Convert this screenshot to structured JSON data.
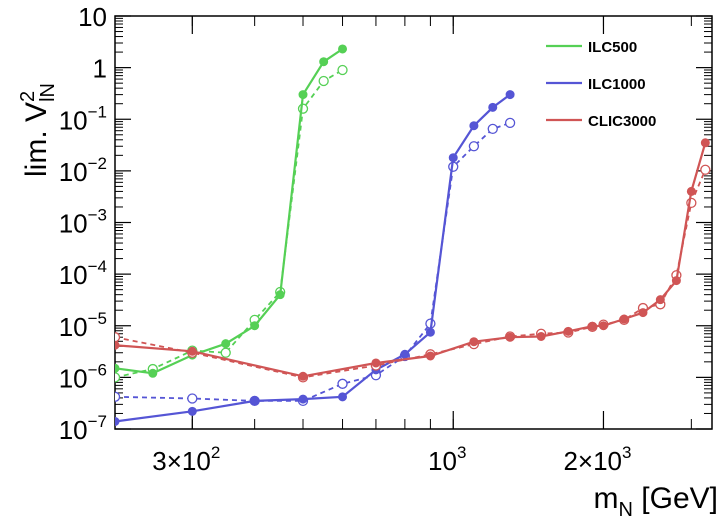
{
  "chart_data": {
    "type": "line",
    "xlabel_main": "m",
    "xlabel_sub": "N",
    "xlabel_unit": " [GeV]",
    "ylabel_main": "lim. V",
    "ylabel_sup": "2",
    "ylabel_sub": "lN",
    "x_scale": "log",
    "y_scale": "log",
    "xlim": [
      210,
      3300
    ],
    "ylim": [
      1e-07,
      10
    ],
    "x_ticks": [
      {
        "value": 300,
        "base": "3×10",
        "exp": "2"
      },
      {
        "value": 1000,
        "base": "10",
        "exp": "3"
      },
      {
        "value": 2000,
        "base": "2×10",
        "exp": "3"
      }
    ],
    "y_ticks": [
      {
        "value": 1e-07,
        "base": "10",
        "exp": "−7"
      },
      {
        "value": 1e-06,
        "base": "10",
        "exp": "−6"
      },
      {
        "value": 1e-05,
        "base": "10",
        "exp": "−5"
      },
      {
        "value": 0.0001,
        "base": "10",
        "exp": "−4"
      },
      {
        "value": 0.001,
        "base": "10",
        "exp": "−3"
      },
      {
        "value": 0.01,
        "base": "10",
        "exp": "−2"
      },
      {
        "value": 0.1,
        "base": "10",
        "exp": "−1"
      },
      {
        "value": 1,
        "base": "1",
        "exp": ""
      },
      {
        "value": 10,
        "base": "10",
        "exp": ""
      }
    ],
    "legend_position": "top-right",
    "series": [
      {
        "name": "ILC500",
        "color": "#55d055",
        "solid": {
          "x": [
            210,
            250,
            300,
            350,
            400,
            450,
            500,
            550,
            600
          ],
          "y": [
            1.5e-06,
            1.2e-06,
            2.7e-06,
            4.5e-06,
            1e-05,
            4e-05,
            0.3,
            1.3,
            2.3
          ]
        },
        "dashed": {
          "x": [
            210,
            250,
            300,
            350,
            400,
            450,
            500,
            550,
            600
          ],
          "y": [
            1e-06,
            1.45e-06,
            3.3e-06,
            3e-06,
            1.3e-05,
            4.5e-05,
            0.16,
            0.55,
            0.9
          ]
        }
      },
      {
        "name": "ILC1000",
        "color": "#5555d5",
        "solid": {
          "x": [
            210,
            300,
            400,
            500,
            600,
            700,
            800,
            900,
            1000,
            1100,
            1200,
            1300
          ],
          "y": [
            1.4e-07,
            2.2e-07,
            3.5e-07,
            3.8e-07,
            4.2e-07,
            1.4e-06,
            2.8e-06,
            7.5e-06,
            0.018,
            0.075,
            0.17,
            0.3
          ]
        },
        "dashed": {
          "x": [
            210,
            300,
            400,
            500,
            600,
            700,
            800,
            900,
            1000,
            1100,
            1200,
            1300
          ],
          "y": [
            4.2e-07,
            3.9e-07,
            3.5e-07,
            3.5e-07,
            7.5e-07,
            1.1e-06,
            2.6e-06,
            1.1e-05,
            0.012,
            0.03,
            0.065,
            0.085
          ]
        }
      },
      {
        "name": "CLIC3000",
        "color": "#d05555",
        "solid": {
          "x": [
            210,
            300,
            500,
            700,
            900,
            1100,
            1300,
            1500,
            1700,
            1900,
            2000,
            2200,
            2400,
            2600,
            2800,
            3000,
            3200
          ],
          "y": [
            4.2e-06,
            3.2e-06,
            1.05e-06,
            1.9e-06,
            2.6e-06,
            4.9e-06,
            6e-06,
            6.2e-06,
            7.8e-06,
            9.8e-06,
            1e-05,
            1.35e-05,
            1.8e-05,
            3.2e-05,
            7.5e-05,
            0.004,
            0.035
          ]
        },
        "dashed": {
          "x": [
            210,
            300,
            500,
            700,
            900,
            1100,
            1300,
            1500,
            1700,
            1900,
            2000,
            2200,
            2400,
            2600,
            2800,
            3000,
            3200
          ],
          "y": [
            6e-06,
            3e-06,
            1e-06,
            1.7e-06,
            2.8e-06,
            4.4e-06,
            6.2e-06,
            7e-06,
            7.4e-06,
            9.5e-06,
            1.05e-05,
            1.3e-05,
            2.2e-05,
            2.6e-05,
            9.5e-05,
            0.0024,
            0.0105
          ]
        }
      }
    ]
  }
}
